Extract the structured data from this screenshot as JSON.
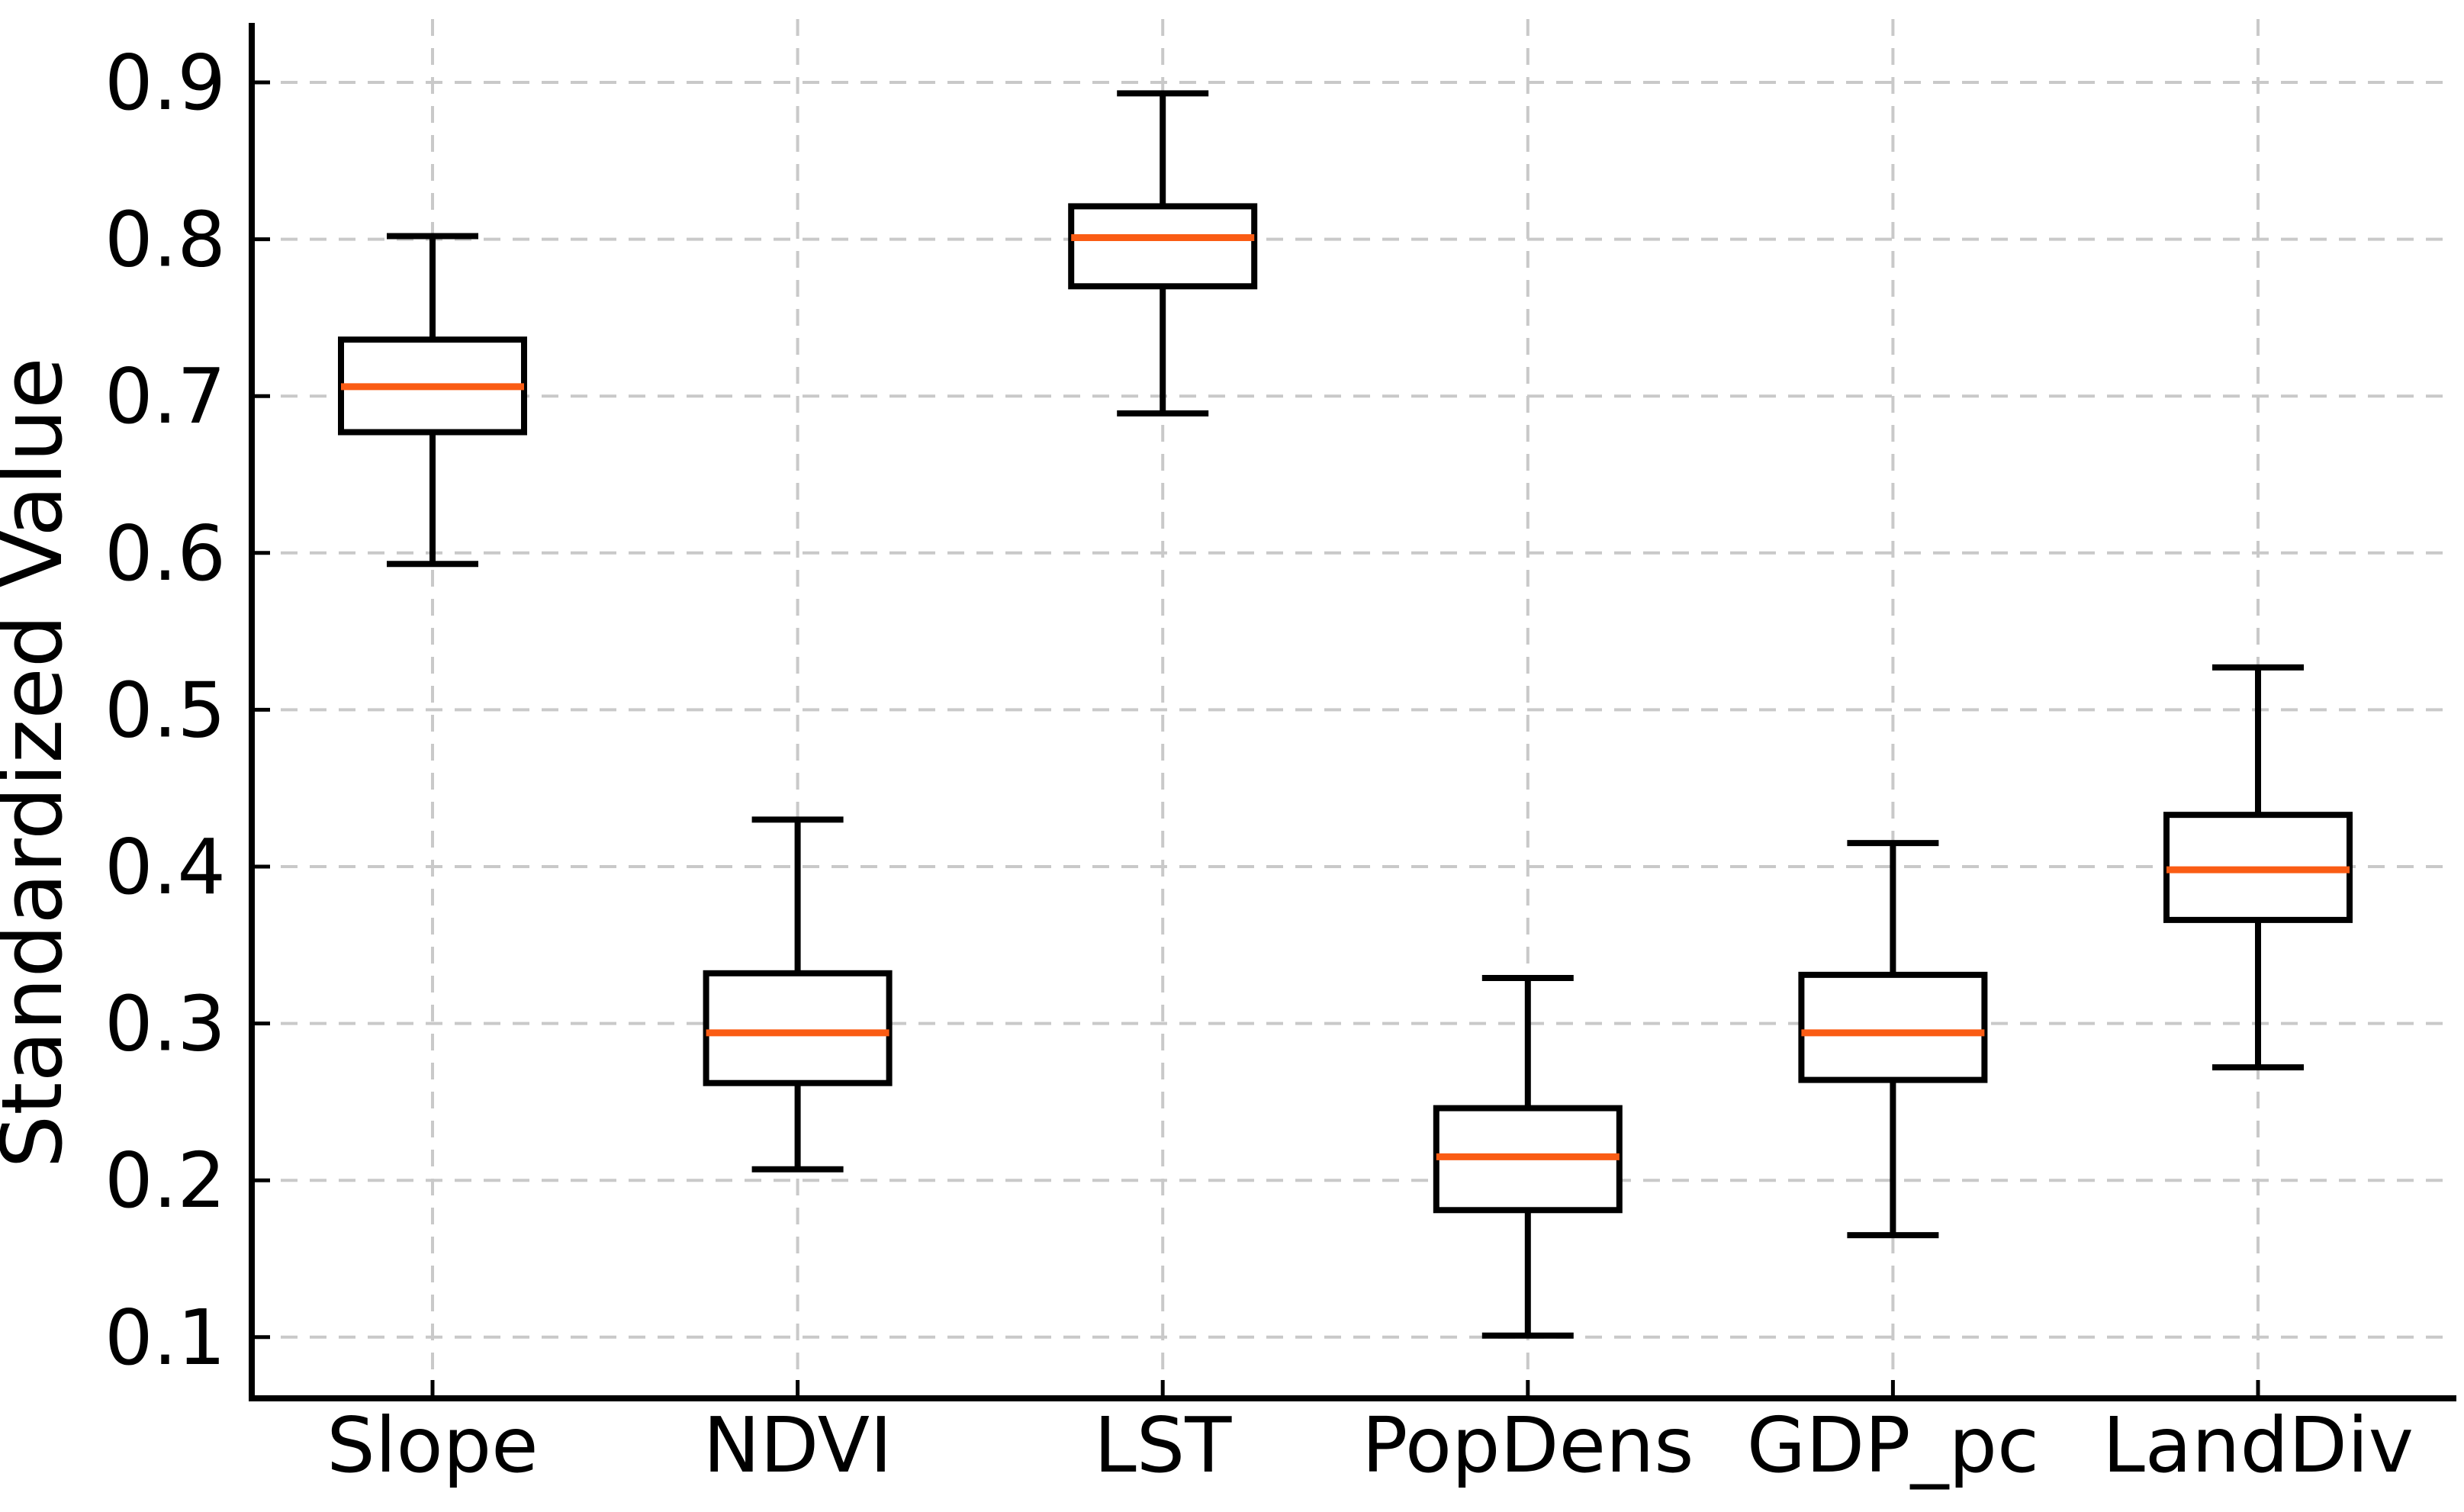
{
  "figure": {
    "kind": "boxplot",
    "background": "#ffffff"
  },
  "chart_data": {
    "type": "box",
    "title": "",
    "xlabel": "",
    "ylabel": "Standardized Value",
    "categories": [
      "Slope",
      "NDVI",
      "LST",
      "PopDens",
      "GDP_pc",
      "LandDiv"
    ],
    "series": [
      {
        "name": "Slope",
        "whislo": 0.593,
        "q1": 0.677,
        "med": 0.706,
        "q3": 0.736,
        "whishi": 0.802
      },
      {
        "name": "NDVI",
        "whislo": 0.207,
        "q1": 0.262,
        "med": 0.294,
        "q3": 0.332,
        "whishi": 0.43
      },
      {
        "name": "LST",
        "whislo": 0.689,
        "q1": 0.77,
        "med": 0.801,
        "q3": 0.821,
        "whishi": 0.893
      },
      {
        "name": "PopDens",
        "whislo": 0.101,
        "q1": 0.181,
        "med": 0.215,
        "q3": 0.246,
        "whishi": 0.329
      },
      {
        "name": "GDP_pc",
        "whislo": 0.165,
        "q1": 0.264,
        "med": 0.294,
        "q3": 0.331,
        "whishi": 0.415
      },
      {
        "name": "LandDiv",
        "whislo": 0.272,
        "q1": 0.366,
        "med": 0.398,
        "q3": 0.433,
        "whishi": 0.527
      }
    ],
    "yticks": [
      0.1,
      0.2,
      0.3,
      0.4,
      0.5,
      0.6,
      0.7,
      0.8,
      0.9
    ],
    "ytick_labels": [
      "0.1",
      "0.2",
      "0.3",
      "0.4",
      "0.5",
      "0.6",
      "0.7",
      "0.8",
      "0.9"
    ],
    "ylim": [
      0.064,
      0.938
    ],
    "grid": {
      "show": true,
      "style": "dashed",
      "axes": "both"
    },
    "legend": null
  },
  "colors": {
    "line": "#000000",
    "median": "#fa5c14",
    "grid": "#c9c9c9",
    "text": "#000000",
    "background": "#ffffff",
    "box_fill": "#ffffff"
  }
}
